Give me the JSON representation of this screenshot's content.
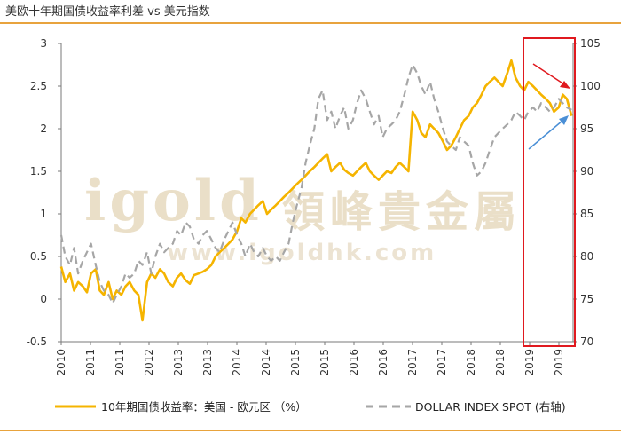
{
  "title": "美欧十年期国债收益率利差 vs 美元指数",
  "watermark": {
    "brand_latin": "igold",
    "brand_cjk": "領峰貴金屬",
    "url": "www.igoldhk.com"
  },
  "colors": {
    "spread_line": "#f5b400",
    "dxy_line": "#a6a6a6",
    "highlight_box": "#e0191f",
    "down_arrow": "#e0191f",
    "up_arrow": "#4a8fd6",
    "accent_rule": "#e8a33d"
  },
  "legend": {
    "series_a": "10年期国债收益率：美国 - 欧元区 （%）",
    "series_b": "DOLLAR INDEX SPOT (右轴)"
  },
  "chart_data": {
    "type": "line",
    "x_tick_labels": [
      "2010",
      "2011",
      "2011",
      "2012",
      "2013",
      "2013",
      "2014",
      "2014",
      "2015",
      "2015",
      "2016",
      "2016",
      "2017",
      "2017",
      "2018",
      "2018",
      "2019",
      "2019"
    ],
    "y_left": {
      "ticks": [
        "-0.5",
        "0",
        "0.5",
        "1",
        "1.5",
        "2",
        "2.5",
        "3"
      ],
      "range": [
        -0.5,
        3
      ]
    },
    "y_right": {
      "ticks": [
        "70",
        "75",
        "80",
        "85",
        "90",
        "95",
        "100",
        "105"
      ],
      "range": [
        70,
        105
      ]
    },
    "grid": false,
    "legend_position": "bottom",
    "highlight_region": {
      "x_start": 2018.7,
      "x_end": 2019.95
    },
    "series": [
      {
        "name": "10年期国债收益率：美国 - 欧元区 （%）",
        "axis": "left",
        "style": "solid",
        "x": [
          2010.0,
          2010.08,
          2010.17,
          2010.25,
          2010.33,
          2010.42,
          2010.5,
          2010.58,
          2010.67,
          2010.75,
          2010.83,
          2010.92,
          2011.0,
          2011.08,
          2011.17,
          2011.25,
          2011.33,
          2011.42,
          2011.5,
          2011.58,
          2011.67,
          2011.75,
          2011.83,
          2011.92,
          2012.0,
          2012.08,
          2012.17,
          2012.25,
          2012.33,
          2012.42,
          2012.5,
          2012.58,
          2012.67,
          2012.75,
          2012.83,
          2012.92,
          2013.0,
          2013.08,
          2013.17,
          2013.25,
          2013.33,
          2013.42,
          2013.5,
          2013.58,
          2013.67,
          2013.75,
          2013.83,
          2013.92,
          2014.0,
          2014.08,
          2014.17,
          2014.25,
          2014.33,
          2014.42,
          2014.5,
          2014.58,
          2014.67,
          2014.75,
          2014.83,
          2014.92,
          2015.0,
          2015.08,
          2015.17,
          2015.25,
          2015.33,
          2015.42,
          2015.5,
          2015.58,
          2015.67,
          2015.75,
          2015.83,
          2015.92,
          2016.0,
          2016.08,
          2016.17,
          2016.25,
          2016.33,
          2016.42,
          2016.5,
          2016.58,
          2016.67,
          2016.75,
          2016.83,
          2016.92,
          2017.0,
          2017.08,
          2017.17,
          2017.25,
          2017.33,
          2017.42,
          2017.5,
          2017.58,
          2017.67,
          2017.75,
          2017.83,
          2017.92,
          2018.0,
          2018.08,
          2018.17,
          2018.25,
          2018.33,
          2018.42,
          2018.5,
          2018.58,
          2018.67,
          2018.75,
          2018.83,
          2018.92,
          2019.0,
          2019.08,
          2019.17,
          2019.25,
          2019.33,
          2019.42,
          2019.5,
          2019.58,
          2019.67,
          2019.75,
          2019.83,
          2019.92
        ],
        "values": [
          0.38,
          0.2,
          0.3,
          0.1,
          0.2,
          0.15,
          0.08,
          0.3,
          0.35,
          0.1,
          0.05,
          0.2,
          0.0,
          0.1,
          0.05,
          0.15,
          0.2,
          0.1,
          0.05,
          -0.25,
          0.2,
          0.3,
          0.25,
          0.35,
          0.3,
          0.2,
          0.15,
          0.25,
          0.3,
          0.22,
          0.18,
          0.28,
          0.3,
          0.32,
          0.35,
          0.4,
          0.5,
          0.55,
          0.6,
          0.65,
          0.7,
          0.8,
          0.95,
          0.9,
          1.0,
          1.05,
          1.1,
          1.15,
          1.0,
          1.05,
          1.1,
          1.15,
          1.2,
          1.25,
          1.3,
          1.35,
          1.4,
          1.45,
          1.5,
          1.55,
          1.6,
          1.65,
          1.7,
          1.5,
          1.55,
          1.6,
          1.52,
          1.48,
          1.45,
          1.5,
          1.55,
          1.6,
          1.5,
          1.45,
          1.4,
          1.45,
          1.5,
          1.48,
          1.55,
          1.6,
          1.55,
          1.5,
          2.2,
          2.1,
          1.95,
          1.9,
          2.05,
          2.0,
          1.95,
          1.85,
          1.75,
          1.8,
          1.9,
          2.0,
          2.1,
          2.15,
          2.25,
          2.3,
          2.4,
          2.5,
          2.55,
          2.6,
          2.55,
          2.5,
          2.65,
          2.8,
          2.6,
          2.5,
          2.45,
          2.55,
          2.5,
          2.45,
          2.4,
          2.35,
          2.3,
          2.2,
          2.25,
          2.4,
          2.35,
          2.15
        ]
      },
      {
        "name": "DOLLAR INDEX SPOT (右轴)",
        "axis": "right",
        "style": "dashed",
        "x": [
          2010.0,
          2010.08,
          2010.17,
          2010.25,
          2010.33,
          2010.42,
          2010.5,
          2010.58,
          2010.67,
          2010.75,
          2010.83,
          2010.92,
          2011.0,
          2011.08,
          2011.17,
          2011.25,
          2011.33,
          2011.42,
          2011.5,
          2011.58,
          2011.67,
          2011.75,
          2011.83,
          2011.92,
          2012.0,
          2012.08,
          2012.17,
          2012.25,
          2012.33,
          2012.42,
          2012.5,
          2012.58,
          2012.67,
          2012.75,
          2012.83,
          2012.92,
          2013.0,
          2013.08,
          2013.17,
          2013.25,
          2013.33,
          2013.42,
          2013.5,
          2013.58,
          2013.67,
          2013.75,
          2013.83,
          2013.92,
          2014.0,
          2014.08,
          2014.17,
          2014.25,
          2014.33,
          2014.42,
          2014.5,
          2014.58,
          2014.67,
          2014.75,
          2014.83,
          2014.92,
          2015.0,
          2015.08,
          2015.17,
          2015.25,
          2015.33,
          2015.42,
          2015.5,
          2015.58,
          2015.67,
          2015.75,
          2015.83,
          2015.92,
          2016.0,
          2016.08,
          2016.17,
          2016.25,
          2016.33,
          2016.42,
          2016.5,
          2016.58,
          2016.67,
          2016.75,
          2016.83,
          2016.92,
          2017.0,
          2017.08,
          2017.17,
          2017.25,
          2017.33,
          2017.42,
          2017.5,
          2017.58,
          2017.67,
          2017.75,
          2017.83,
          2017.92,
          2018.0,
          2018.08,
          2018.17,
          2018.25,
          2018.33,
          2018.42,
          2018.5,
          2018.58,
          2018.67,
          2018.75,
          2018.83,
          2018.92,
          2019.0,
          2019.08,
          2019.17,
          2019.25,
          2019.33,
          2019.42,
          2019.5,
          2019.58,
          2019.67,
          2019.75,
          2019.83,
          2019.92
        ],
        "values": [
          82.5,
          80.0,
          79.0,
          81.0,
          78.0,
          79.5,
          80.5,
          81.5,
          79.0,
          77.0,
          76.0,
          75.5,
          74.5,
          75.5,
          76.5,
          78.0,
          77.5,
          78.0,
          79.5,
          79.0,
          80.5,
          78.0,
          80.0,
          81.5,
          80.5,
          81.0,
          81.5,
          83.0,
          82.5,
          84.0,
          83.5,
          82.0,
          81.5,
          82.5,
          83.0,
          82.0,
          81.0,
          80.5,
          82.0,
          83.0,
          84.0,
          82.5,
          81.5,
          80.0,
          81.5,
          80.5,
          80.0,
          81.0,
          80.0,
          79.5,
          80.0,
          79.5,
          80.5,
          81.5,
          84.0,
          86.0,
          88.0,
          91.0,
          93.0,
          95.0,
          98.5,
          99.5,
          96.0,
          97.0,
          95.0,
          96.5,
          97.5,
          95.0,
          96.0,
          98.0,
          99.5,
          98.5,
          97.0,
          95.5,
          96.5,
          94.0,
          95.0,
          95.5,
          96.0,
          97.0,
          99.0,
          101.0,
          102.5,
          101.5,
          100.0,
          99.0,
          100.5,
          98.5,
          97.0,
          95.0,
          93.5,
          93.0,
          92.5,
          94.0,
          93.5,
          93.0,
          91.0,
          89.5,
          90.0,
          91.0,
          92.5,
          94.0,
          94.5,
          95.0,
          95.5,
          96.0,
          97.0,
          96.5,
          96.0,
          97.0,
          97.5,
          97.0,
          98.0,
          97.5,
          97.0,
          97.5,
          98.5,
          98.0,
          97.5,
          97.2
        ]
      }
    ]
  }
}
